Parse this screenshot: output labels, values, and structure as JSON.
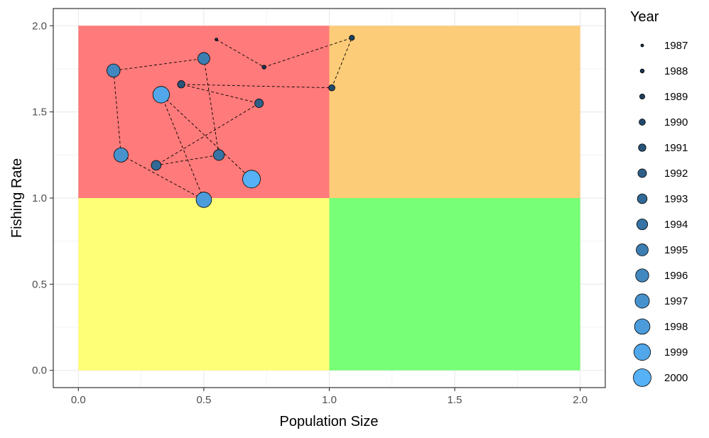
{
  "chart_data": {
    "type": "scatter",
    "xlabel": "Population Size",
    "ylabel": "Fishing Rate",
    "xlim": [
      -0.1,
      2.1
    ],
    "ylim": [
      -0.1,
      2.1
    ],
    "x_ticks": [
      "0.0",
      "0.5",
      "1.0",
      "1.5",
      "2.0"
    ],
    "y_ticks": [
      "0.0",
      "0.5",
      "1.0",
      "1.5",
      "2.0"
    ],
    "grid": true,
    "regions": [
      {
        "name": "red-zone",
        "x": [
          0,
          1
        ],
        "y": [
          1,
          2
        ],
        "color": "#ff7a7a"
      },
      {
        "name": "orange-zone",
        "x": [
          1,
          2
        ],
        "y": [
          1,
          2
        ],
        "color": "#fdcc79"
      },
      {
        "name": "yellow-zone",
        "x": [
          0,
          1
        ],
        "y": [
          0,
          1
        ],
        "color": "#ffff77"
      },
      {
        "name": "green-zone",
        "x": [
          1,
          2
        ],
        "y": [
          0,
          1
        ],
        "color": "#77ff77"
      }
    ],
    "legend": {
      "title": "Year",
      "position": "right"
    },
    "series": [
      {
        "year": "1987",
        "x": 0.55,
        "y": 1.92
      },
      {
        "year": "1988",
        "x": 0.74,
        "y": 1.76
      },
      {
        "year": "1989",
        "x": 1.09,
        "y": 1.93
      },
      {
        "year": "1990",
        "x": 1.01,
        "y": 1.64
      },
      {
        "year": "1991",
        "x": 0.41,
        "y": 1.66
      },
      {
        "year": "1992",
        "x": 0.72,
        "y": 1.55
      },
      {
        "year": "1993",
        "x": 0.31,
        "y": 1.19
      },
      {
        "year": "1994",
        "x": 0.56,
        "y": 1.25
      },
      {
        "year": "1995",
        "x": 0.5,
        "y": 1.81
      },
      {
        "year": "1996",
        "x": 0.14,
        "y": 1.74
      },
      {
        "year": "1997",
        "x": 0.17,
        "y": 1.25
      },
      {
        "year": "1998",
        "x": 0.5,
        "y": 0.99
      },
      {
        "year": "1999",
        "x": 0.33,
        "y": 1.6
      },
      {
        "year": "2000",
        "x": 0.69,
        "y": 1.11
      }
    ],
    "color_low": "#132b43",
    "color_high": "#56b1f7"
  }
}
